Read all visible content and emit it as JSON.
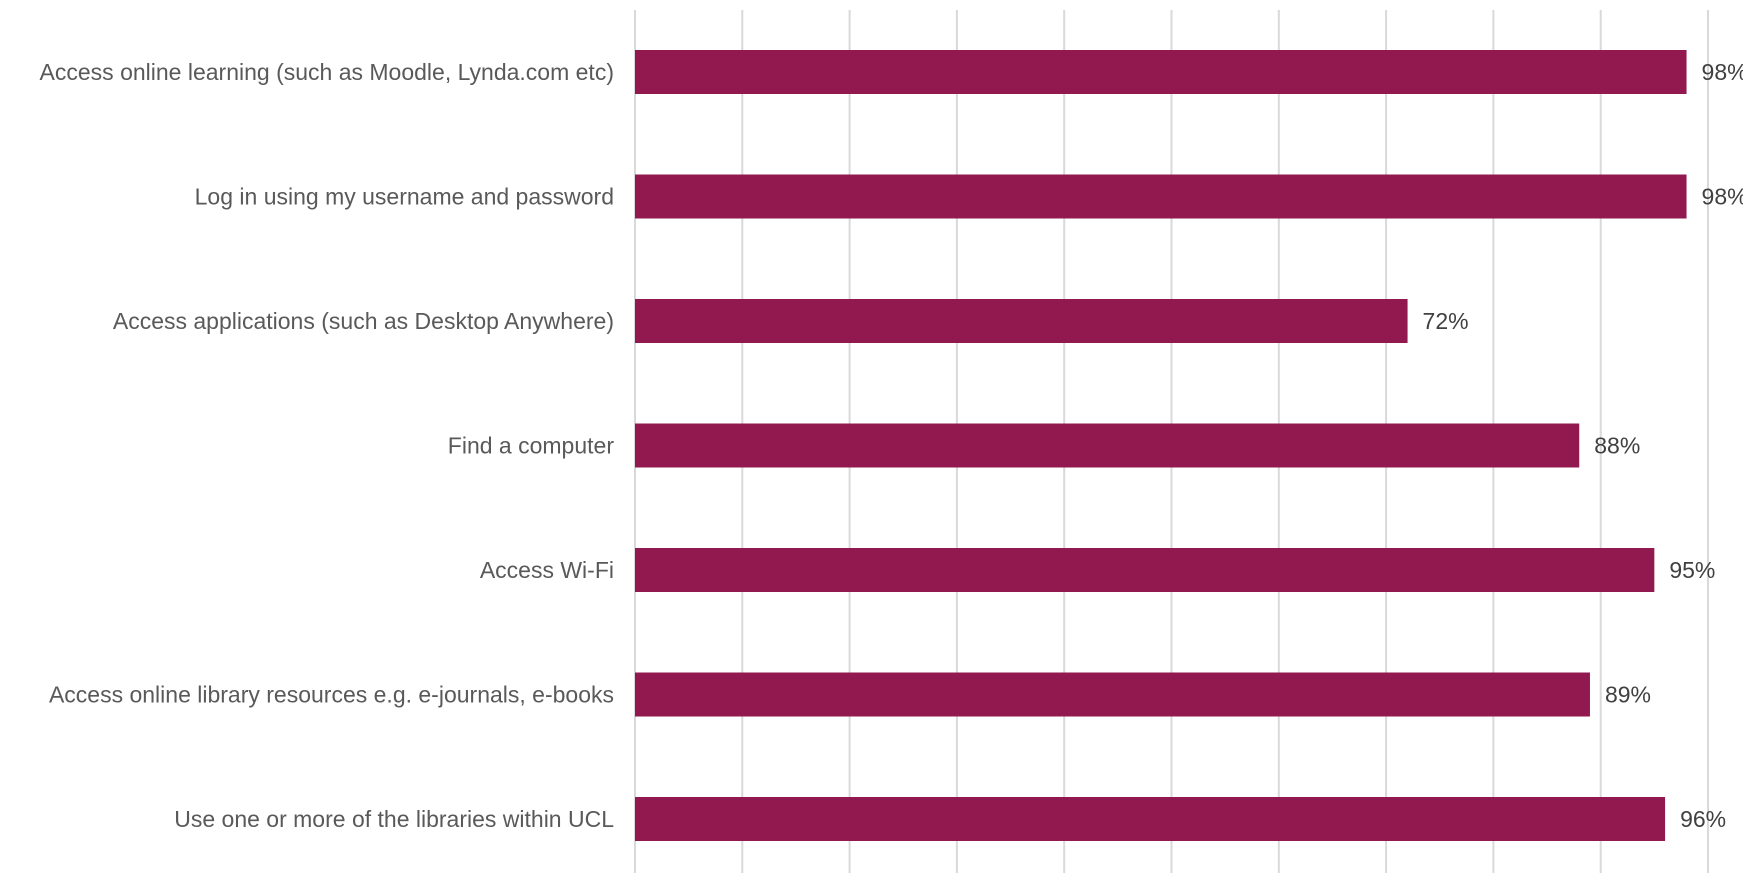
{
  "chart_data": {
    "type": "bar",
    "orientation": "horizontal",
    "categories": [
      "Access online learning (such as Moodle, Lynda.com etc)",
      "Log in using my username and password",
      "Access applications (such as Desktop Anywhere)",
      "Find a computer",
      "Access Wi-Fi",
      "Access online library resources e.g. e-journals, e-books",
      "Use one or more of the libraries within UCL"
    ],
    "values": [
      98,
      98,
      72,
      88,
      95,
      89,
      96
    ],
    "value_labels": [
      "98%",
      "98%",
      "72%",
      "88%",
      "95%",
      "89%",
      "96%"
    ],
    "xlim": [
      0,
      100
    ],
    "grid": true,
    "legend": "none",
    "bar_color": "#92194f"
  }
}
